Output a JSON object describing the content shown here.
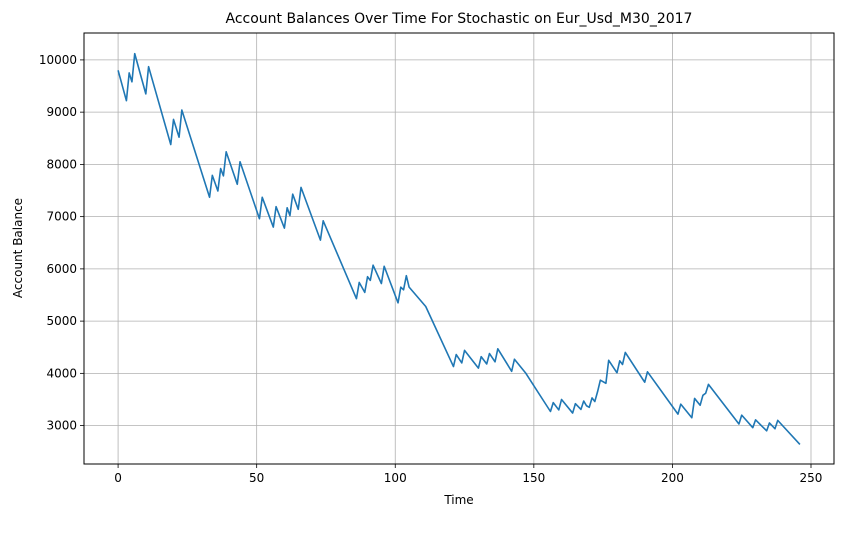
{
  "chart_data": {
    "type": "line",
    "title": "Account Balances Over Time For Stochastic on Eur_Usd_M30_2017",
    "xlabel": "Time",
    "ylabel": "Account Balance",
    "xlim": [
      -12.3,
      258.3
    ],
    "ylim": [
      2265,
      10515
    ],
    "xticks": [
      0,
      50,
      100,
      150,
      200,
      250
    ],
    "yticks": [
      3000,
      4000,
      5000,
      6000,
      7000,
      8000,
      9000,
      10000
    ],
    "grid": true,
    "colors": {
      "line": "#1f77b4",
      "grid": "#b0b0b0"
    },
    "series": [
      {
        "name": "",
        "x": [
          0,
          3,
          4,
          5,
          6,
          10,
          11,
          19,
          20,
          22,
          23,
          33,
          34,
          36,
          37,
          38,
          39,
          43,
          44,
          51,
          52,
          56,
          57,
          60,
          61,
          62,
          63,
          65,
          66,
          73,
          74,
          86,
          87,
          89,
          90,
          91,
          92,
          95,
          96,
          101,
          102,
          103,
          104,
          105,
          111,
          121,
          122,
          124,
          125,
          130,
          131,
          133,
          134,
          135,
          136,
          137,
          142,
          143,
          147,
          156,
          157,
          159,
          160,
          164,
          165,
          167,
          168,
          169,
          170,
          171,
          172,
          173,
          174,
          176,
          177,
          180,
          181,
          182,
          183,
          190,
          191,
          202,
          203,
          207,
          208,
          210,
          211,
          212,
          213,
          224,
          225,
          229,
          230,
          234,
          235,
          237,
          238,
          246
        ],
        "values": [
          9800,
          9220,
          9750,
          9580,
          10120,
          9350,
          9870,
          8380,
          8860,
          8520,
          9040,
          7370,
          7790,
          7490,
          7920,
          7780,
          8240,
          7620,
          8050,
          6960,
          7370,
          6800,
          7190,
          6780,
          7170,
          7020,
          7430,
          7140,
          7560,
          6550,
          6920,
          5430,
          5740,
          5550,
          5850,
          5780,
          6070,
          5720,
          6050,
          5350,
          5650,
          5600,
          5870,
          5650,
          5280,
          4130,
          4360,
          4200,
          4440,
          4100,
          4320,
          4180,
          4380,
          4300,
          4220,
          4470,
          4040,
          4270,
          4010,
          3270,
          3440,
          3300,
          3500,
          3240,
          3420,
          3310,
          3470,
          3380,
          3350,
          3530,
          3460,
          3650,
          3870,
          3810,
          4250,
          4010,
          4240,
          4170,
          4400,
          3830,
          4030,
          3220,
          3410,
          3150,
          3520,
          3390,
          3580,
          3620,
          3790,
          3030,
          3200,
          2960,
          3110,
          2900,
          3050,
          2940,
          3100,
          2640
        ]
      }
    ]
  }
}
